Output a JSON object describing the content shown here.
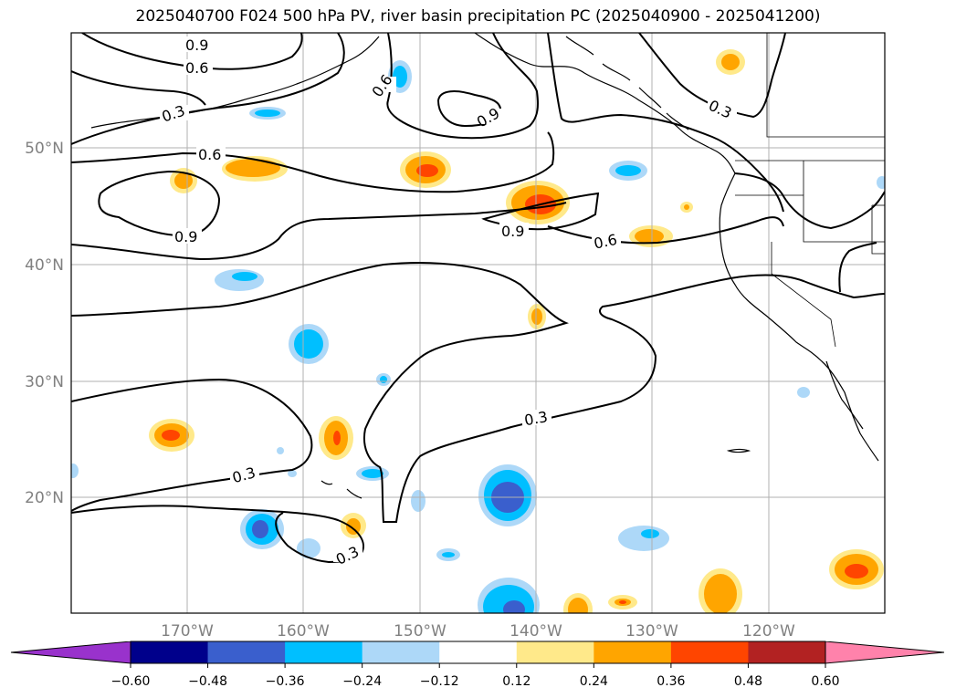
{
  "title": "2025040700 F024 500 hPa PV, river basin precipitation PC (2025040900 - 2025041200)",
  "map": {
    "lon_labels": [
      "170°W",
      "160°W",
      "150°W",
      "140°W",
      "130°W",
      "120°W"
    ],
    "lat_labels": [
      "50°N",
      "40°N",
      "30°N",
      "20°N"
    ],
    "contour_labels": [
      "0.9",
      "0.6",
      "0.3",
      "0.6",
      "0.9",
      "0.6",
      "0.9",
      "0.9",
      "0.6",
      "0.3",
      "0.3",
      "0.3",
      "0.3"
    ]
  },
  "colorbar": {
    "ticks": [
      "−0.60",
      "−0.48",
      "−0.36",
      "−0.24",
      "−0.12",
      "0.12",
      "0.24",
      "0.36",
      "0.48",
      "0.60"
    ],
    "colors": [
      "#9932cc",
      "#00008b",
      "#3a5fcd",
      "#00bfff",
      "#add8f8",
      "#ffffff",
      "#ffe98a",
      "#ffa500",
      "#ff4500",
      "#b22222",
      "#ff82ab"
    ]
  }
}
